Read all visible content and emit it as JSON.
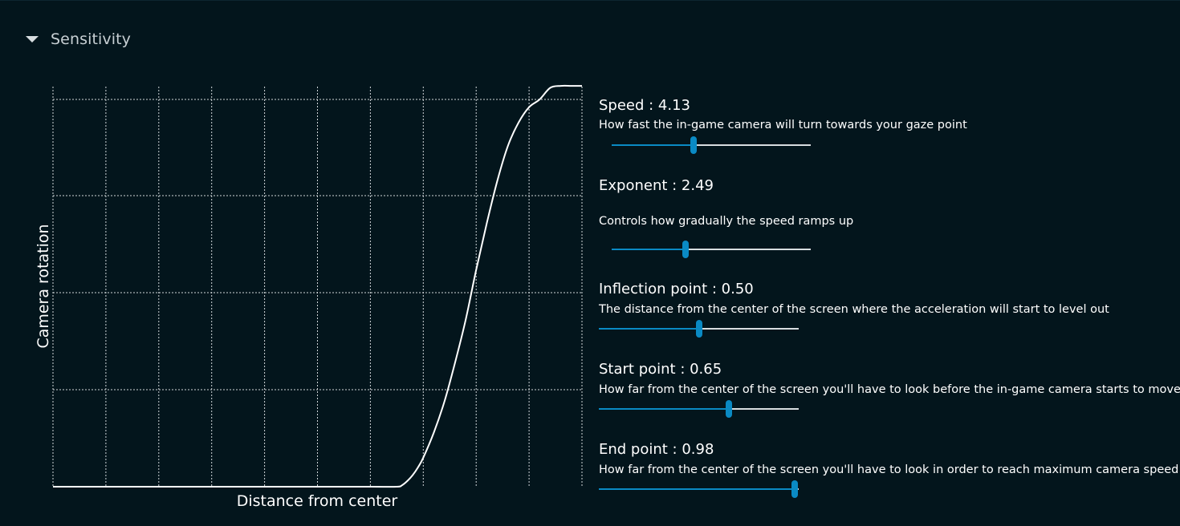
{
  "section": {
    "title": "Sensitivity",
    "caret_icon": "caret-down-icon"
  },
  "graph": {
    "y_axis_label": "Camera rotation",
    "x_axis_label": "Distance from center",
    "curve_color": "#ffffff",
    "grid_color": "#d0d6d9"
  },
  "chart_data": {
    "type": "line",
    "title": "",
    "xlabel": "Distance from center",
    "ylabel": "Camera rotation",
    "xlim": [
      0,
      1
    ],
    "ylim": [
      0,
      1
    ],
    "grid": true,
    "legend": "none",
    "series": [
      {
        "x": [
          0.0,
          0.1,
          0.2,
          0.3,
          0.4,
          0.5,
          0.6,
          0.65,
          0.66,
          0.67,
          0.68,
          0.69,
          0.7,
          0.72,
          0.74,
          0.76,
          0.78,
          0.8,
          0.82,
          0.84,
          0.86,
          0.88,
          0.9,
          0.92,
          0.94,
          0.96,
          0.98,
          1.0
        ],
        "y": [
          0.0,
          0.0,
          0.0,
          0.0,
          0.0,
          0.0,
          0.0,
          0.0,
          0.004,
          0.015,
          0.03,
          0.05,
          0.075,
          0.14,
          0.22,
          0.32,
          0.43,
          0.56,
          0.68,
          0.79,
          0.88,
          0.94,
          0.98,
          1.0,
          1.03,
          1.035,
          1.035,
          1.035
        ]
      }
    ]
  },
  "controls": [
    {
      "label": "Speed : 4.13",
      "description": "How fast the in-game camera will turn towards your gaze point",
      "value": 0.413
    },
    {
      "label": "Exponent : 2.49",
      "description": "Controls how gradually the speed ramps up",
      "value": 0.37
    },
    {
      "label": "Inflection point : 0.50",
      "description": "The distance from the center of the screen where the acceleration will start to level out",
      "value": 0.5
    },
    {
      "label": "Start point : 0.65",
      "description": "How far from the center of the screen you'll have to look before the in-game camera starts to move",
      "value": 0.65
    },
    {
      "label": "End point : 0.98",
      "description": "How far from the center of the screen you'll have to look in order to reach maximum camera speed",
      "value": 0.98
    }
  ],
  "colors": {
    "background": "#03151c",
    "accent": "#0a8ac4",
    "track": "#d8dde0"
  }
}
